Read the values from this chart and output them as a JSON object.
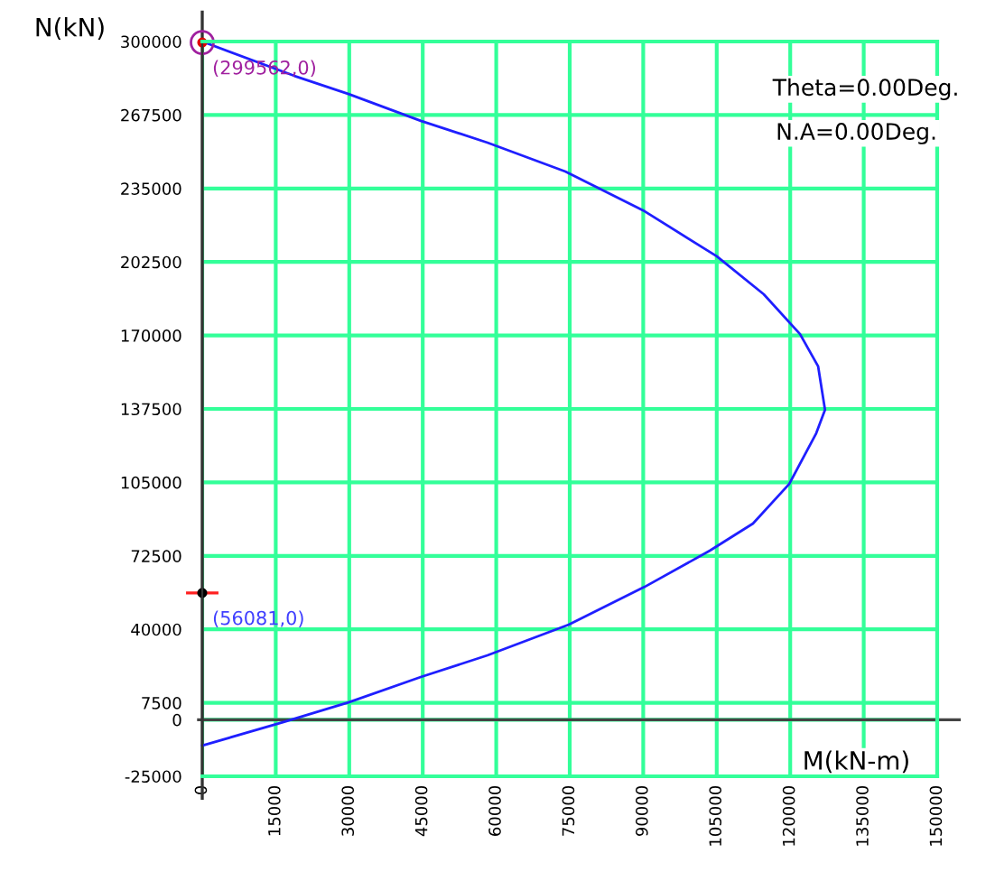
{
  "chart_data": {
    "type": "line",
    "xlabel": "M(kN-m)",
    "ylabel": "N(kN)",
    "series": [
      {
        "color": "#1f1fff",
        "x": [
          0,
          18800,
          29850,
          44600,
          58200,
          74100,
          90300,
          105000,
          114600,
          122000,
          125700,
          127100,
          125300,
          119800,
          112400,
          103600,
          90300,
          74800,
          58200,
          44600,
          29850,
          16600,
          0
        ],
        "values": [
          300000,
          284800,
          276800,
          264900,
          255300,
          242500,
          224900,
          205000,
          188200,
          170600,
          156300,
          137100,
          126700,
          104300,
          86800,
          74800,
          58800,
          42100,
          28500,
          18900,
          7700,
          -1000,
          -11400
        ]
      }
    ],
    "annotations": [
      {
        "text": "(299562,0)",
        "x": 0,
        "y": 299562
      },
      {
        "text": "(56081,0)",
        "x": 0,
        "y": 56081
      },
      "Theta=0.00Deg.",
      "N.A=0.00Deg."
    ],
    "xlim": [
      0,
      150000
    ],
    "xticks": [
      0,
      15000,
      30000,
      45000,
      60000,
      75000,
      90000,
      105000,
      120000,
      135000,
      150000
    ],
    "ylim": [
      -25000,
      300000
    ],
    "yticks": [
      -25000,
      0,
      7500,
      40000,
      72500,
      105000,
      137500,
      170000,
      202500,
      235000,
      267500,
      300000
    ],
    "grid": true,
    "marker": "none",
    "line_style": "solid"
  }
}
